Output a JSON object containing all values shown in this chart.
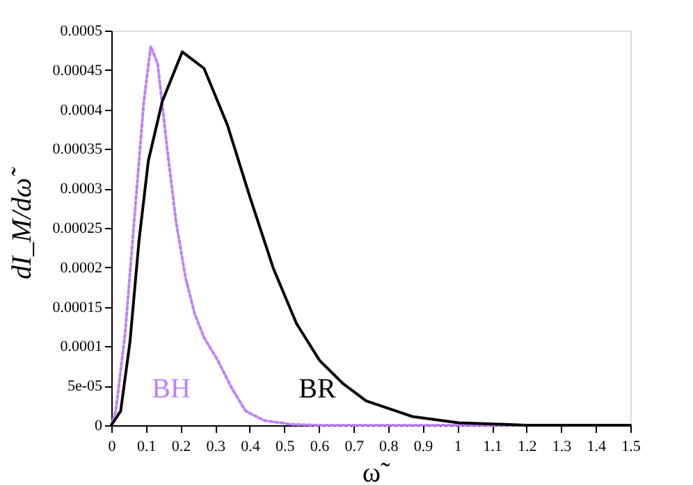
{
  "chart_data": {
    "type": "line",
    "xlabel": "ω̃",
    "ylabel": "dI_M/dω̃",
    "xlim": [
      0,
      1.5
    ],
    "xticks": [
      0,
      0.1,
      0.2,
      0.3,
      0.4,
      0.5,
      0.6,
      0.7,
      0.8,
      0.9,
      1,
      1.1,
      1.2,
      1.3,
      1.4,
      1.5
    ],
    "ylim": [
      0,
      0.0005
    ],
    "yticks": [
      0,
      {
        "value": 5e-05,
        "label": "5e-05"
      },
      0.0001,
      0.00015,
      0.0002,
      0.00025,
      0.0003,
      0.00035,
      0.0004,
      0.00045,
      0.0005
    ],
    "grid": false,
    "legend": false,
    "marker": "none",
    "series": [
      {
        "name": "BH",
        "color": "#bf7fff",
        "line_style": "dotted",
        "x": [
          0,
          0.013,
          0.04,
          0.067,
          0.094,
          0.114,
          0.134,
          0.161,
          0.187,
          0.214,
          0.241,
          0.268,
          0.308,
          0.348,
          0.388,
          0.442,
          0.522,
          0.6,
          1.0,
          1.5
        ],
        "values": [
          0,
          1.8e-05,
          0.000117,
          0.000264,
          0.00041,
          0.00048,
          0.000458,
          0.000352,
          0.000258,
          0.000188,
          0.000141,
          0.000111,
          8.2e-05,
          4.7e-05,
          1.8e-05,
          6e-06,
          1e-06,
          0,
          0,
          0
        ]
      },
      {
        "name": "BR",
        "color": "#000000",
        "line_style": "solid",
        "x": [
          0,
          0.027,
          0.054,
          0.08,
          0.107,
          0.147,
          0.205,
          0.268,
          0.335,
          0.402,
          0.468,
          0.535,
          0.602,
          0.669,
          0.736,
          0.837,
          0.87,
          1.004,
          1.138,
          1.2,
          1.5
        ],
        "values": [
          0,
          1.8e-05,
          0.000106,
          0.000234,
          0.000335,
          0.00041,
          0.000473,
          0.000452,
          0.000381,
          0.000287,
          0.000199,
          0.000129,
          8.2e-05,
          5.3e-05,
          3.1e-05,
          1.6e-05,
          1.1e-05,
          3e-06,
          1e-06,
          0,
          0
        ]
      }
    ]
  }
}
